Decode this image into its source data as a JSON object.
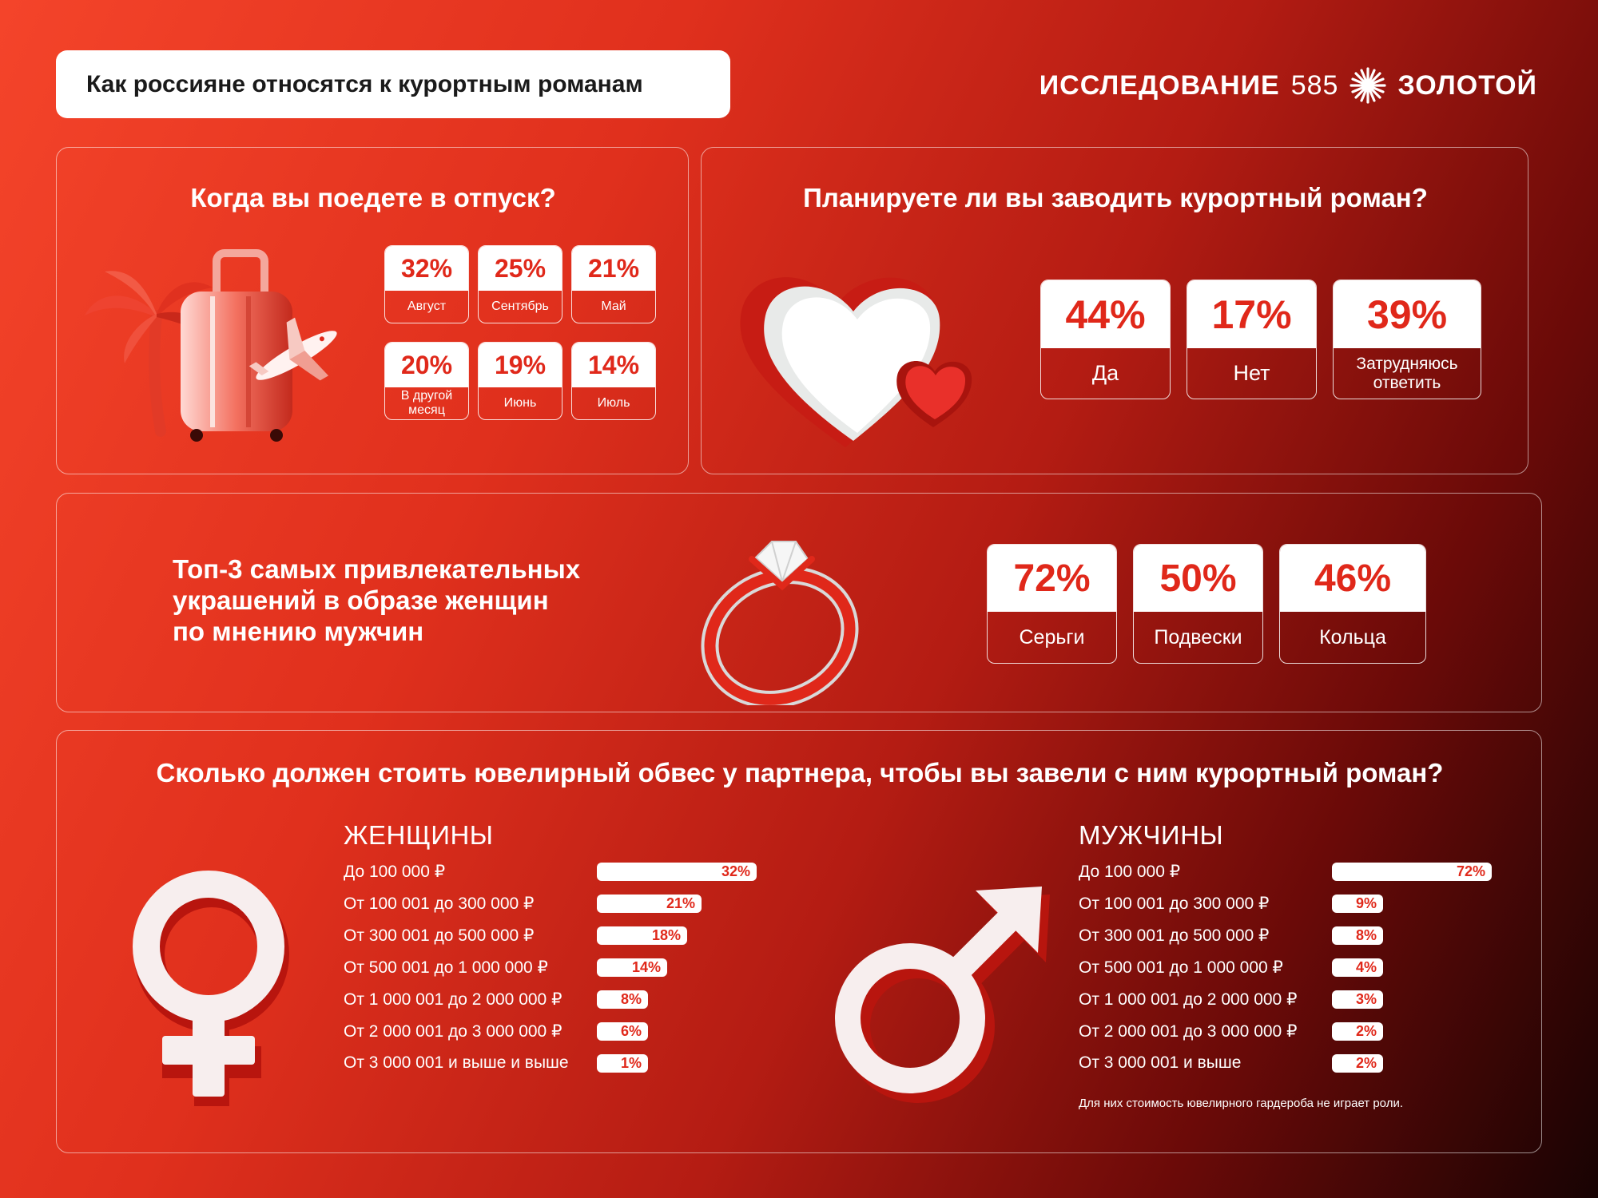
{
  "header": {
    "title": "Как россияне относятся к курортным романам",
    "brand_word": "ИССЛЕДОВАНИЕ",
    "brand_number": "585",
    "brand_name": "ЗОЛОТОЙ"
  },
  "vacation": {
    "title": "Когда вы поедете в отпуск?",
    "items": [
      {
        "value": "32%",
        "label": "Август"
      },
      {
        "value": "25%",
        "label": "Сентябрь"
      },
      {
        "value": "21%",
        "label": "Май"
      },
      {
        "value": "20%",
        "label": "В другой месяц"
      },
      {
        "value": "19%",
        "label": "Июнь"
      },
      {
        "value": "14%",
        "label": "Июль"
      }
    ]
  },
  "romance": {
    "title": "Планируете ли вы заводить курортный роман?",
    "items": [
      {
        "value": "44%",
        "label": "Да"
      },
      {
        "value": "17%",
        "label": "Нет"
      },
      {
        "value": "39%",
        "label": "Затрудняюсь ответить"
      }
    ]
  },
  "jewelry": {
    "title_lines": [
      "Топ-3 самых привлекательных",
      "украшений в образе женщин",
      "по мнению мужчин"
    ],
    "items": [
      {
        "value": "72%",
        "label": "Серьги"
      },
      {
        "value": "50%",
        "label": "Подвески"
      },
      {
        "value": "46%",
        "label": "Кольца"
      }
    ]
  },
  "cost": {
    "title": "Сколько должен стоить ювелирный обвес у партнера, чтобы вы завели с ним курортный роман?",
    "women": {
      "title": "ЖЕНЩИНЫ",
      "rows": [
        {
          "label": "До 100 000 ₽",
          "value": "32%",
          "pct": 32
        },
        {
          "label": "От 100 001 до 300 000 ₽",
          "value": "21%",
          "pct": 21
        },
        {
          "label": "От 300 001 до 500 000 ₽",
          "value": "18%",
          "pct": 18
        },
        {
          "label": "От 500 001 до 1 000 000 ₽",
          "value": "14%",
          "pct": 14
        },
        {
          "label": "От 1 000 001 до 2 000 000 ₽",
          "value": "8%",
          "pct": 8
        },
        {
          "label": "От 2 000 001 до 3 000 000 ₽",
          "value": "6%",
          "pct": 6
        },
        {
          "label": "От 3 000 001 и выше и выше",
          "value": "1%",
          "pct": 1
        }
      ]
    },
    "men": {
      "title": "МУЖЧИНЫ",
      "rows": [
        {
          "label": "До 100 000 ₽",
          "value": "72%",
          "pct": 72
        },
        {
          "label": "От 100 001 до 300 000 ₽",
          "value": "9%",
          "pct": 9
        },
        {
          "label": "От 300 001 до 500 000 ₽",
          "value": "8%",
          "pct": 8
        },
        {
          "label": "От 500 001 до 1 000 000 ₽",
          "value": "4%",
          "pct": 4
        },
        {
          "label": "От 1 000 001 до 2 000 000 ₽",
          "value": "3%",
          "pct": 3
        },
        {
          "label": "От 2 000 001 до 3 000 000 ₽",
          "value": "2%",
          "pct": 2
        },
        {
          "label": "От 3 000 001 и выше",
          "value": "2%",
          "pct": 2
        }
      ],
      "note": "Для них стоимость ювелирного гардероба не играет роли."
    }
  },
  "colors": {
    "accent": "#e0281a",
    "background_start": "#f4442a",
    "background_end": "#180303"
  }
}
